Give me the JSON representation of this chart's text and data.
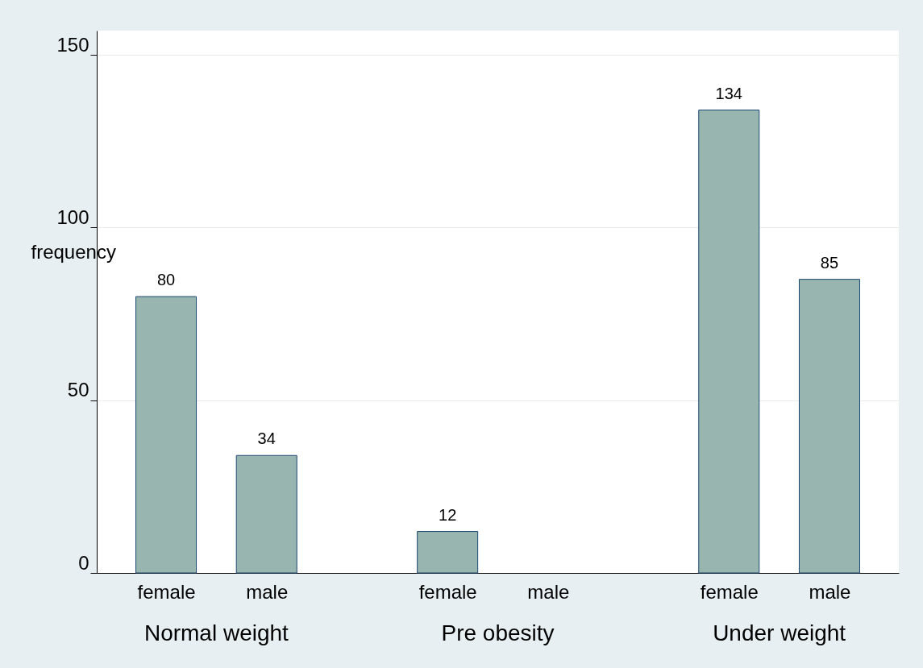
{
  "chart_data": {
    "type": "bar",
    "ylabel": "frequency",
    "categories": [
      "female",
      "male",
      "female",
      "male",
      "female",
      "male"
    ],
    "values": [
      80,
      34,
      12,
      null,
      134,
      85
    ],
    "color": "#98b5b0",
    "ylim": [
      0,
      157
    ],
    "yticks": [
      0,
      50,
      100,
      150
    ],
    "grid": "y",
    "data_labels": true,
    "annotations": [
      "Normal weight",
      "Pre obesity",
      "Under weight"
    ]
  }
}
